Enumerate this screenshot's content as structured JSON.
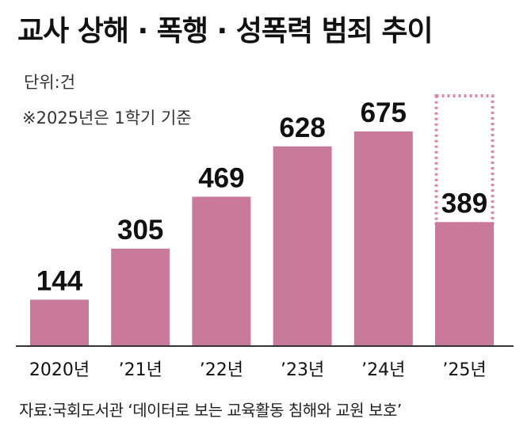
{
  "header": {
    "title": "교사 상해 · 폭행 · 성폭력 범죄 추이",
    "unit": "단위:건",
    "note": "※2025년은 1학기 기준"
  },
  "footer": {
    "source": "자료:국회도서관 ‘데이터로 보는 교육활동 침해와 교원 보호’"
  },
  "colors": {
    "bar": "#c97a9b",
    "dotted_outline": "#d98aa8",
    "baseline": "#333333"
  },
  "chart_data": {
    "type": "bar",
    "title": "교사 상해 · 폭행 · 성폭력 범죄 추이",
    "categories": [
      "2020년",
      "’21년",
      "’22년",
      "’23년",
      "’24년",
      "’25년"
    ],
    "values": [
      144,
      305,
      469,
      628,
      675,
      389
    ],
    "value_labels": [
      "144",
      "305",
      "469",
      "628",
      "675",
      "389"
    ],
    "projected_2025_full_year_outline": true,
    "ylim": [
      0,
      740
    ],
    "grid": false,
    "legend": "none"
  }
}
